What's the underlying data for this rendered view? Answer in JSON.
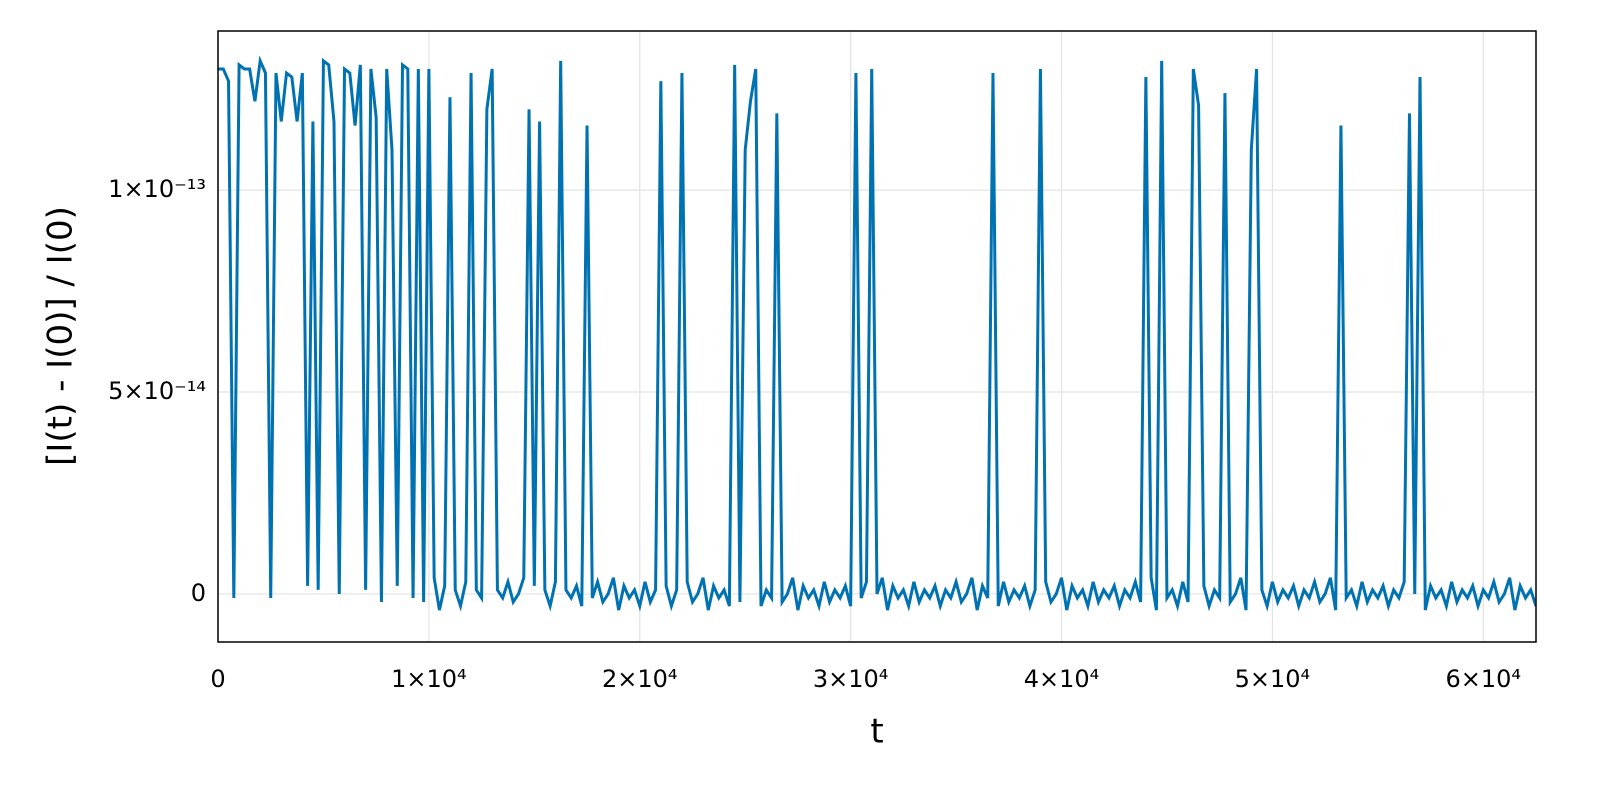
{
  "chart_data": {
    "type": "line",
    "xlabel": "t",
    "ylabel": "[I(t) - I(0)] / I(0)",
    "xlim": [
      0,
      62500
    ],
    "ylim": [
      -1.19e-14,
      1.394e-13
    ],
    "xticks": [
      0,
      {
        "value": 10000,
        "label": "1×10⁴"
      },
      {
        "value": 20000,
        "label": "2×10⁴"
      },
      {
        "value": 30000,
        "label": "3×10⁴"
      },
      {
        "value": 40000,
        "label": "4×10⁴"
      },
      {
        "value": 50000,
        "label": "5×10⁴"
      },
      {
        "value": 60000,
        "label": "6×10⁴"
      }
    ],
    "yticks": [
      0,
      {
        "value": 5e-14,
        "label": "5×10⁻¹⁴"
      },
      {
        "value": 1e-13,
        "label": "1×10⁻¹³"
      }
    ],
    "grid": true,
    "x": [
      0,
      250,
      500,
      750,
      1000,
      1250,
      1500,
      1750,
      2000,
      2250,
      2500,
      2750,
      3000,
      3250,
      3500,
      3750,
      4000,
      4250,
      4500,
      4750,
      5000,
      5250,
      5500,
      5750,
      6000,
      6250,
      6500,
      6750,
      7000,
      7250,
      7500,
      7750,
      8000,
      8250,
      8500,
      8750,
      9000,
      9250,
      9500,
      9750,
      10000,
      10250,
      10500,
      10750,
      11000,
      11250,
      11500,
      11750,
      12000,
      12250,
      12500,
      12750,
      13000,
      13250,
      13500,
      13750,
      14000,
      14250,
      14500,
      14750,
      15000,
      15250,
      15500,
      15750,
      16000,
      16250,
      16500,
      16750,
      17000,
      17250,
      17500,
      17750,
      18000,
      18250,
      18500,
      18750,
      19000,
      19250,
      19500,
      19750,
      20000,
      20250,
      20500,
      20750,
      21000,
      21250,
      21500,
      21750,
      22000,
      22250,
      22500,
      22750,
      23000,
      23250,
      23500,
      23750,
      24000,
      24250,
      24500,
      24750,
      25000,
      25250,
      25500,
      25750,
      26000,
      26250,
      26500,
      26750,
      27000,
      27250,
      27500,
      27750,
      28000,
      28250,
      28500,
      28750,
      29000,
      29250,
      29500,
      29750,
      30000,
      30250,
      30500,
      30750,
      31000,
      31250,
      31500,
      31750,
      32000,
      32250,
      32500,
      32750,
      33000,
      33250,
      33500,
      33750,
      34000,
      34250,
      34500,
      34750,
      35000,
      35250,
      35500,
      35750,
      36000,
      36250,
      36500,
      36750,
      37000,
      37250,
      37500,
      37750,
      38000,
      38250,
      38500,
      38750,
      39000,
      39250,
      39500,
      39750,
      40000,
      40250,
      40500,
      40750,
      41000,
      41250,
      41500,
      41750,
      42000,
      42250,
      42500,
      42750,
      43000,
      43250,
      43500,
      43750,
      44000,
      44250,
      44500,
      44750,
      45000,
      45250,
      45500,
      45750,
      46000,
      46250,
      46500,
      46750,
      47000,
      47250,
      47500,
      47750,
      48000,
      48250,
      48500,
      48750,
      49000,
      49250,
      49500,
      49750,
      50000,
      50250,
      50500,
      50750,
      51000,
      51250,
      51500,
      51750,
      52000,
      52250,
      52500,
      52750,
      53000,
      53250,
      53500,
      53750,
      54000,
      54250,
      54500,
      54750,
      55000,
      55250,
      55500,
      55750,
      56000,
      56250,
      56500,
      56750,
      57000,
      57250,
      57500,
      57750,
      58000,
      58250,
      58500,
      58750,
      59000,
      59250,
      59500,
      59750,
      60000,
      60250,
      60500,
      60750,
      61000,
      61250,
      61500,
      61750,
      62000,
      62250,
      62500
    ],
    "series": [
      {
        "color": "#0072b2",
        "values": [
          1.3e-13,
          1.3e-13,
          1.27e-13,
          -1e-15,
          1.31e-13,
          1.3e-13,
          1.3e-13,
          1.22e-13,
          1.32e-13,
          1.29e-13,
          -1e-15,
          1.29e-13,
          1.17e-13,
          1.29e-13,
          1.28e-13,
          1.17e-13,
          1.29e-13,
          2e-15,
          1.17e-13,
          1e-15,
          1.32e-13,
          1.31e-13,
          1.17e-13,
          0,
          1.3e-13,
          1.29e-13,
          1.16e-13,
          1.31e-13,
          1e-15,
          1.3e-13,
          1.18e-13,
          -2e-15,
          1.3e-13,
          1.1e-13,
          2e-15,
          1.31e-13,
          1.3e-13,
          -1e-15,
          1.3e-13,
          -2e-15,
          1.3e-13,
          4e-15,
          -4e-15,
          2e-15,
          1.23e-13,
          1e-15,
          -3e-15,
          3e-15,
          1.29e-13,
          1e-15,
          -1e-15,
          1.2e-13,
          1.3e-13,
          1e-15,
          -1e-15,
          3e-15,
          -2e-15,
          0,
          4e-15,
          1.2e-13,
          2e-15,
          1.17e-13,
          1e-15,
          -3e-15,
          3e-15,
          1.32e-13,
          1e-15,
          -1e-15,
          2e-15,
          -3e-15,
          1.16e-13,
          -1e-15,
          3e-15,
          -2e-15,
          0,
          4e-15,
          -4e-15,
          2e-15,
          -1e-15,
          1e-15,
          -3e-15,
          3e-15,
          -2e-15,
          1e-15,
          1.27e-13,
          2e-15,
          -3e-15,
          1e-15,
          1.29e-13,
          3e-15,
          -2e-15,
          0,
          4e-15,
          -4e-15,
          2e-15,
          -1e-15,
          1e-15,
          -3e-15,
          1.31e-13,
          -2e-15,
          1.1e-13,
          1.22e-13,
          1.3e-13,
          -3e-15,
          1e-15,
          -1e-15,
          1.19e-13,
          -2e-15,
          0,
          4e-15,
          -4e-15,
          2e-15,
          -1e-15,
          1e-15,
          -3e-15,
          3e-15,
          -2e-15,
          1e-15,
          -1e-15,
          2e-15,
          -3e-15,
          1.29e-13,
          -1e-15,
          3e-15,
          1.3e-13,
          0,
          4e-15,
          -4e-15,
          2e-15,
          -1e-15,
          1e-15,
          -3e-15,
          3e-15,
          -2e-15,
          1e-15,
          -1e-15,
          2e-15,
          -3e-15,
          1e-15,
          -1e-15,
          3e-15,
          -2e-15,
          0,
          4e-15,
          -4e-15,
          2e-15,
          -1e-15,
          1.29e-13,
          -3e-15,
          3e-15,
          -2e-15,
          1e-15,
          -1e-15,
          2e-15,
          -3e-15,
          1e-15,
          1.3e-13,
          3e-15,
          -2e-15,
          0,
          4e-15,
          -4e-15,
          2e-15,
          -1e-15,
          1e-15,
          -3e-15,
          3e-15,
          -2e-15,
          1e-15,
          -1e-15,
          2e-15,
          -3e-15,
          1e-15,
          -1e-15,
          3e-15,
          -2e-15,
          1.28e-13,
          4e-15,
          -4e-15,
          1.32e-13,
          -1e-15,
          1e-15,
          -3e-15,
          3e-15,
          -2e-15,
          1.3e-13,
          1.21e-13,
          2e-15,
          -3e-15,
          1e-15,
          -1e-15,
          1.24e-13,
          -2e-15,
          0,
          4e-15,
          -4e-15,
          1.1e-13,
          1.3e-13,
          1e-15,
          -3e-15,
          3e-15,
          -2e-15,
          1e-15,
          -1e-15,
          2e-15,
          -3e-15,
          1e-15,
          -1e-15,
          3e-15,
          -2e-15,
          0,
          4e-15,
          -4e-15,
          1.16e-13,
          -1e-15,
          1e-15,
          -3e-15,
          3e-15,
          -2e-15,
          1e-15,
          -1e-15,
          2e-15,
          -3e-15,
          1e-15,
          -1e-15,
          3e-15,
          1.19e-13,
          0,
          1.28e-13,
          -4e-15,
          2e-15,
          -1e-15,
          1e-15,
          -3e-15,
          3e-15,
          -2e-15,
          1e-15,
          -1e-15,
          2e-15,
          -3e-15,
          1e-15,
          -1e-15,
          3e-15,
          -2e-15,
          0,
          4e-15,
          -4e-15,
          2e-15,
          -1e-15,
          1e-15,
          -3e-15
        ]
      }
    ]
  }
}
